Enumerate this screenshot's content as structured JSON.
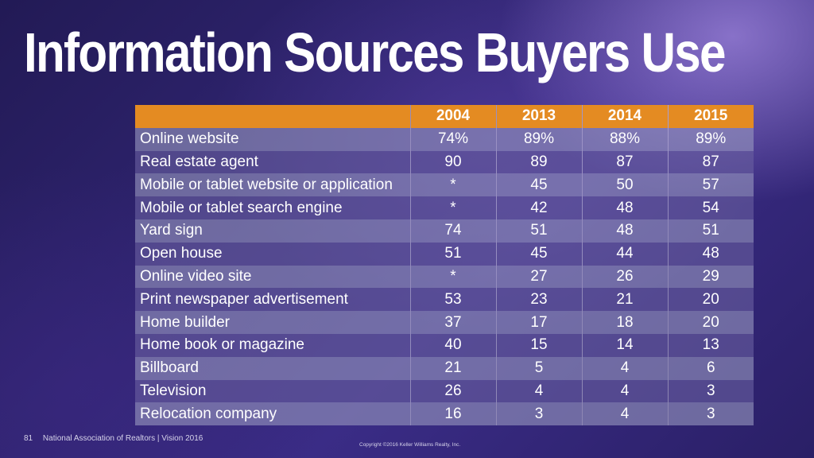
{
  "title": "Information Sources Buyers Use",
  "table": {
    "columns": [
      "",
      "2004",
      "2013",
      "2014",
      "2015"
    ],
    "rows": [
      [
        "Online website",
        "74%",
        "89%",
        "88%",
        "89%"
      ],
      [
        "Real estate agent",
        "90",
        "89",
        "87",
        "87"
      ],
      [
        "Mobile or tablet website or application",
        "*",
        "45",
        "50",
        "57"
      ],
      [
        "Mobile or tablet search engine",
        "*",
        "42",
        "48",
        "54"
      ],
      [
        "Yard sign",
        "74",
        "51",
        "48",
        "51"
      ],
      [
        "Open house",
        "51",
        "45",
        "44",
        "48"
      ],
      [
        "Online video site",
        "*",
        "27",
        "26",
        "29"
      ],
      [
        "Print newspaper advertisement",
        "53",
        "23",
        "21",
        "20"
      ],
      [
        "Home builder",
        "37",
        "17",
        "18",
        "20"
      ],
      [
        "Home book or magazine",
        "40",
        "15",
        "14",
        "13"
      ],
      [
        "Billboard",
        "21",
        "5",
        "4",
        "6"
      ],
      [
        "Television",
        "26",
        "4",
        "4",
        "3"
      ],
      [
        "Relocation company",
        "16",
        "3",
        "4",
        "3"
      ]
    ]
  },
  "footer": {
    "page_number": "81",
    "source": "National Association of Realtors | Vision 2016",
    "copyright": "Copyright ©2016 Keller Williams Realty, Inc."
  },
  "colors": {
    "header_bg": "#e48b22",
    "text": "#ffffff"
  }
}
